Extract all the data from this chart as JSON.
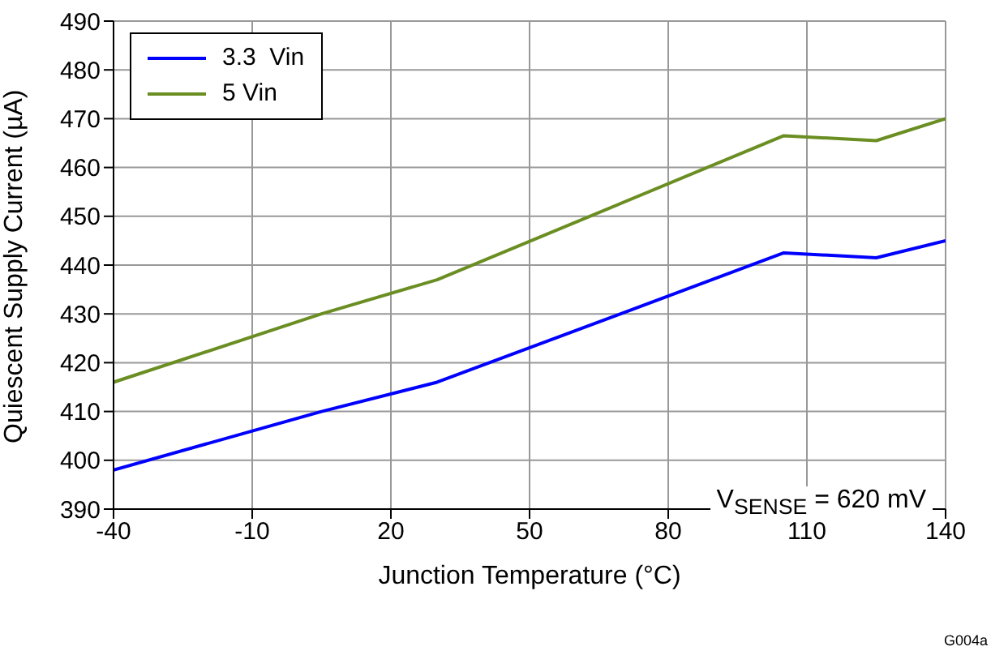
{
  "chart_data": {
    "type": "line",
    "xlabel": "Junction Temperature (°C)",
    "ylabel": "Quiescent Supply Current (µA)",
    "series": [
      {
        "name": "3.3  Vin",
        "color": "#0000ff",
        "x": [
          -40,
          5,
          30,
          105,
          125,
          140
        ],
        "values": [
          398,
          410,
          416,
          442.5,
          441.5,
          445
        ]
      },
      {
        "name": "5 Vin",
        "color": "#6b8e23",
        "x": [
          -40,
          5,
          30,
          105,
          125,
          140
        ],
        "values": [
          416,
          430,
          437,
          466.5,
          465.5,
          470
        ]
      }
    ],
    "xlim": [
      -40,
      140
    ],
    "xticks": [
      -40,
      -10,
      20,
      50,
      80,
      110,
      140
    ],
    "ylim": [
      390,
      490
    ],
    "yticks": [
      390,
      400,
      410,
      420,
      430,
      440,
      450,
      460,
      470,
      480,
      490
    ],
    "grid": true,
    "legend": "top left",
    "marker": "none",
    "line_style": "solid",
    "annotations": [
      "V$_{SENSE}$ = 620 mV",
      "G004a"
    ]
  }
}
